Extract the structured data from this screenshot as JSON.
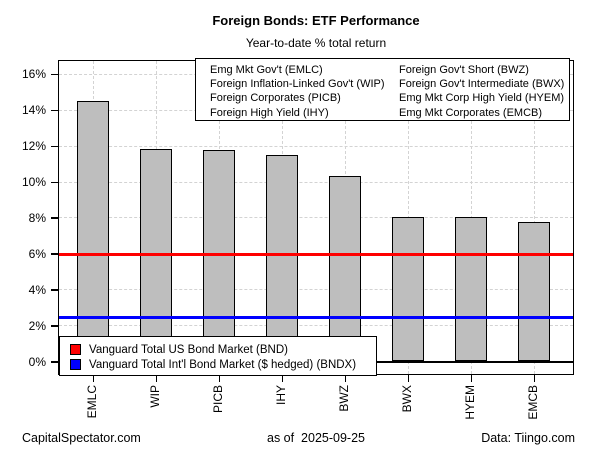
{
  "title": "Foreign Bonds: ETF Performance",
  "subtitle": "Year-to-date % total return",
  "etf_legend": {
    "col1": [
      "Emg Mkt Gov't (EMLC)",
      "Foreign Inflation-Linked Gov't (WIP)",
      "Foreign Corporates (PICB)",
      "Foreign High Yield (IHY)"
    ],
    "col2": [
      "Foreign Gov't Short (BWZ)",
      "Foreign Gov't Intermediate (BWX)",
      "Emg Mkt Corp High Yield (HYEM)",
      "Emg Mkt Corporates (EMCB)"
    ]
  },
  "benchmark_legend": [
    {
      "label": "Vanguard Total US Bond Market (BND)",
      "color": "#ff0000"
    },
    {
      "label": "Vanguard Total Int'l Bond Market ($ hedged) (BNDX)",
      "color": "#0000ff"
    }
  ],
  "footer": {
    "left": "CapitalSpectator.com",
    "center": "as of  2025-09-25",
    "right": "Data: Tiingo.com"
  },
  "chart_data": {
    "type": "bar",
    "title": "Foreign Bonds: ETF Performance",
    "subtitle": "Year-to-date % total return",
    "categories": [
      "EMLC",
      "WIP",
      "PICB",
      "IHY",
      "BWZ",
      "BWX",
      "HYEM",
      "EMCB"
    ],
    "values": [
      14.5,
      11.8,
      11.75,
      11.5,
      10.3,
      8.05,
      8.0,
      7.75
    ],
    "xlabel": "",
    "ylabel": "",
    "ylim": [
      0,
      16
    ],
    "ytick_step": 2,
    "ytick_suffix": "%",
    "grid": true,
    "bar_color": "#bebebe",
    "reference_lines": [
      {
        "name": "BND",
        "label": "Vanguard Total US Bond Market (BND)",
        "value": 5.95,
        "color": "#ff0000"
      },
      {
        "name": "BNDX",
        "label": "Vanguard Total Int'l Bond Market ($ hedged) (BNDX)",
        "value": 2.45,
        "color": "#0000ff"
      }
    ],
    "legend_position": "bottom-left"
  }
}
